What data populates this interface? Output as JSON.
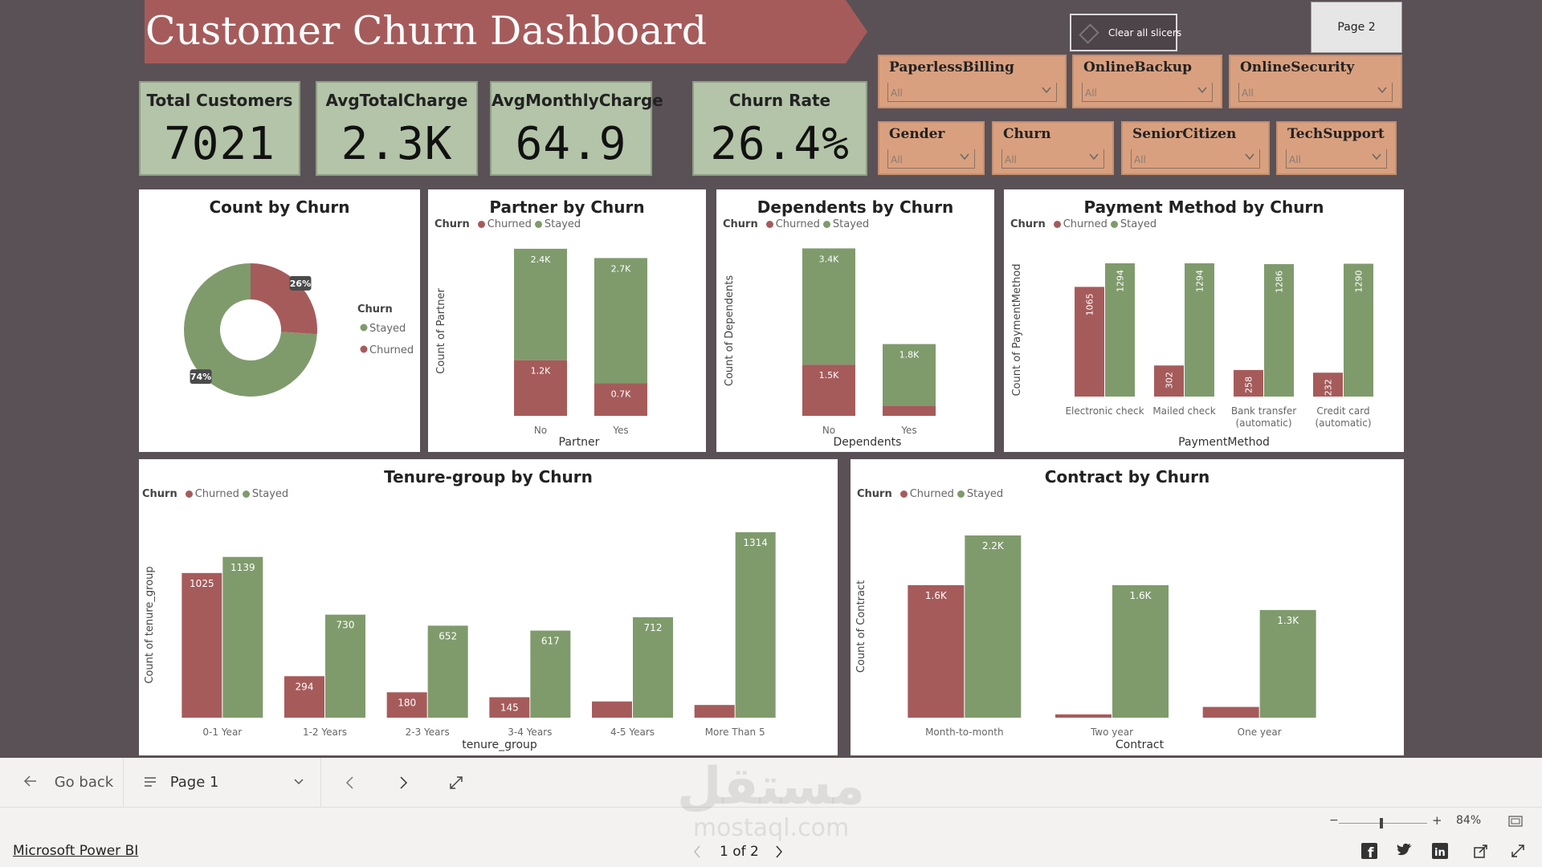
{
  "dashboard": {
    "title": "Customer Churn Dashboard",
    "clear_slicers": "Clear all slicers",
    "page2_button": "Page 2"
  },
  "kpis": [
    {
      "title": "Total Customers",
      "value": "7021"
    },
    {
      "title": "AvgTotalCharge",
      "value": "2.3K"
    },
    {
      "title": "AvgMonthlyCharge",
      "value": "64.9"
    },
    {
      "title": "Churn Rate",
      "value": "26.4%"
    }
  ],
  "slicers": [
    {
      "title": "PaperlessBilling",
      "value": "All"
    },
    {
      "title": "OnlineBackup",
      "value": "All"
    },
    {
      "title": "OnlineSecurity",
      "value": "All"
    },
    {
      "title": "Gender",
      "value": "All"
    },
    {
      "title": "Churn",
      "value": "All"
    },
    {
      "title": "SeniorCitizen",
      "value": "All"
    },
    {
      "title": "TechSupport",
      "value": "All"
    }
  ],
  "legend": {
    "title": "Churn",
    "churned": "Churned",
    "stayed": "Stayed"
  },
  "colors": {
    "churned": "#a65b5b",
    "stayed": "#7f9b6c",
    "canvas": "#5a5156",
    "kpi": "#b3c4a8",
    "slicer": "#d9a07f",
    "banner": "#a65b5b"
  },
  "chart_data": [
    {
      "type": "donut",
      "title": "Count by Churn",
      "legend_title": "Churn",
      "legend_position": "right",
      "slices": [
        {
          "label": "Stayed",
          "value": 74,
          "display": "74%"
        },
        {
          "label": "Churned",
          "value": 26,
          "display": "26%"
        }
      ]
    },
    {
      "type": "stacked-bar",
      "title": "Partner by Churn",
      "xlabel": "Partner",
      "ylabel": "Count of Partner",
      "categories": [
        "No",
        "Yes"
      ],
      "series": [
        {
          "name": "Churned",
          "values": [
            1200,
            700
          ],
          "labels": [
            "1.2K",
            "0.7K"
          ]
        },
        {
          "name": "Stayed",
          "values": [
            2400,
            2700
          ],
          "labels": [
            "2.4K",
            "2.7K"
          ]
        }
      ]
    },
    {
      "type": "stacked-bar",
      "title": "Dependents by Churn",
      "xlabel": "Dependents",
      "ylabel": "Count of Dependents",
      "categories": [
        "No",
        "Yes"
      ],
      "series": [
        {
          "name": "Churned",
          "values": [
            1500,
            300
          ],
          "labels": [
            "1.5K",
            ""
          ]
        },
        {
          "name": "Stayed",
          "values": [
            3400,
            1800
          ],
          "labels": [
            "3.4K",
            "1.8K"
          ]
        }
      ]
    },
    {
      "type": "bar",
      "title": "Payment Method by Churn",
      "xlabel": "PaymentMethod",
      "ylabel": "Count of PaymentMethod",
      "categories": [
        "Electronic check",
        "Mailed check",
        "Bank transfer (automatic)",
        "Credit card (automatic)"
      ],
      "series": [
        {
          "name": "Churned",
          "values": [
            1065,
            302,
            258,
            232
          ]
        },
        {
          "name": "Stayed",
          "values": [
            1294,
            1294,
            1286,
            1290
          ]
        }
      ]
    },
    {
      "type": "bar",
      "title": "Tenure-group by Churn",
      "xlabel": "tenure_group",
      "ylabel": "Count of tenure_group",
      "categories": [
        "0-1 Year",
        "1-2 Years",
        "2-3 Years",
        "3-4 Years",
        "4-5 Years",
        "More Than 5"
      ],
      "series": [
        {
          "name": "Churned",
          "values": [
            1025,
            294,
            180,
            145,
            115,
            90
          ],
          "labels": [
            "1025",
            "294",
            "180",
            "145",
            "",
            ""
          ]
        },
        {
          "name": "Stayed",
          "values": [
            1139,
            730,
            652,
            617,
            712,
            1314
          ],
          "labels": [
            "1139",
            "730",
            "652",
            "617",
            "712",
            "1314"
          ]
        }
      ]
    },
    {
      "type": "bar",
      "title": "Contract by Churn",
      "xlabel": "Contract",
      "ylabel": "Count of Contract",
      "categories": [
        "Month-to-month",
        "Two year",
        "One year"
      ],
      "series": [
        {
          "name": "Churned",
          "values": [
            1600,
            40,
            130
          ],
          "labels": [
            "1.6K",
            "",
            ""
          ]
        },
        {
          "name": "Stayed",
          "values": [
            2200,
            1600,
            1300
          ],
          "labels": [
            "2.2K",
            "1.6K",
            "1.3K"
          ]
        }
      ]
    }
  ],
  "navbar": {
    "go_back": "Go back",
    "page_select": "Page 1",
    "zoom": "84%",
    "page_indicator": "1 of 2"
  },
  "footer": {
    "brand_link": "Microsoft Power BI",
    "watermark_ar": "مستقل",
    "watermark_en": "mostaql.com"
  }
}
